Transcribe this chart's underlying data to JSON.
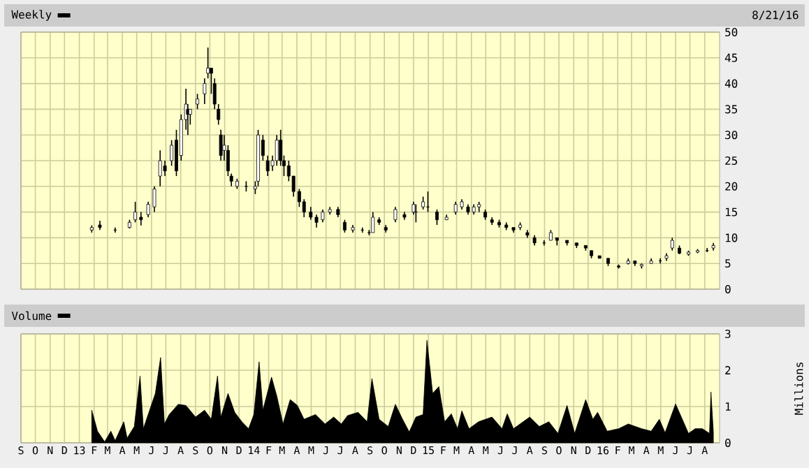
{
  "chart_data": [
    {
      "type": "candlestick",
      "annotations": [
        "8/21/16"
      ],
      "legend": "top left",
      "grid": true,
      "tick_labels": "y",
      "xlim": [
        "2012-09-01",
        "2016-09-01"
      ],
      "ylim": [
        0,
        50
      ],
      "yticks": [
        0,
        5,
        10,
        15,
        20,
        25,
        30,
        35,
        40,
        45,
        50
      ],
      "xticks": [
        {
          "value": "2012-09-01",
          "label": null
        },
        {
          "value": "2012-10-01",
          "label": null
        },
        {
          "value": "2012-11-01",
          "label": null
        },
        {
          "value": "2012-12-01",
          "label": null
        },
        {
          "value": "2013-01-01",
          "label": null
        },
        {
          "value": "2013-02-01",
          "label": null
        },
        {
          "value": "2013-03-01",
          "label": null
        },
        {
          "value": "2013-04-01",
          "label": null
        },
        {
          "value": "2013-05-01",
          "label": null
        },
        {
          "value": "2013-06-01",
          "label": null
        },
        {
          "value": "2013-07-01",
          "label": null
        },
        {
          "value": "2013-08-01",
          "label": null
        },
        {
          "value": "2013-09-01",
          "label": null
        },
        {
          "value": "2013-10-01",
          "label": null
        },
        {
          "value": "2013-11-01",
          "label": null
        },
        {
          "value": "2013-12-01",
          "label": null
        },
        {
          "value": "2014-01-01",
          "label": null
        },
        {
          "value": "2014-02-01",
          "label": null
        },
        {
          "value": "2014-03-01",
          "label": null
        },
        {
          "value": "2014-04-01",
          "label": null
        },
        {
          "value": "2014-05-01",
          "label": null
        },
        {
          "value": "2014-06-01",
          "label": null
        },
        {
          "value": "2014-07-01",
          "label": null
        },
        {
          "value": "2014-08-01",
          "label": null
        },
        {
          "value": "2014-09-01",
          "label": null
        },
        {
          "value": "2014-10-01",
          "label": null
        },
        {
          "value": "2014-11-01",
          "label": null
        },
        {
          "value": "2014-12-01",
          "label": null
        },
        {
          "value": "2015-01-01",
          "label": null
        },
        {
          "value": "2015-02-01",
          "label": null
        },
        {
          "value": "2015-03-01",
          "label": null
        },
        {
          "value": "2015-04-01",
          "label": null
        },
        {
          "value": "2015-05-01",
          "label": null
        },
        {
          "value": "2015-06-01",
          "label": null
        },
        {
          "value": "2015-07-01",
          "label": null
        },
        {
          "value": "2015-08-01",
          "label": null
        },
        {
          "value": "2015-09-01",
          "label": null
        },
        {
          "value": "2015-10-01",
          "label": null
        },
        {
          "value": "2015-11-01",
          "label": null
        },
        {
          "value": "2015-12-01",
          "label": null
        },
        {
          "value": "2016-01-01",
          "label": null
        },
        {
          "value": "2016-02-01",
          "label": null
        },
        {
          "value": "2016-03-01",
          "label": null
        },
        {
          "value": "2016-04-01",
          "label": null
        },
        {
          "value": "2016-05-01",
          "label": null
        },
        {
          "value": "2016-06-01",
          "label": null
        },
        {
          "value": "2016-07-01",
          "label": null
        },
        {
          "value": "2016-08-01",
          "label": null
        }
      ],
      "series": [
        {
          "name": "Weekly",
          "color": "#000000",
          "x": [
            "2013-01-27",
            "2013-02-13",
            "2013-03-17",
            "2013-04-16",
            "2013-04-28",
            "2013-05-10",
            "2013-05-25",
            "2013-06-07",
            "2013-06-19",
            "2013-06-29",
            "2013-07-13",
            "2013-07-23",
            "2013-08-02",
            "2013-08-12",
            "2013-08-16",
            "2013-08-21",
            "2013-09-05",
            "2013-09-20",
            "2013-09-27",
            "2013-10-04",
            "2013-10-11",
            "2013-10-19",
            "2013-10-24",
            "2013-10-31",
            "2013-11-08",
            "2013-11-15",
            "2013-11-27",
            "2013-12-16",
            "2014-01-04",
            "2014-01-10",
            "2014-01-20",
            "2014-01-30",
            "2014-02-09",
            "2014-02-18",
            "2014-02-26",
            "2014-03-05",
            "2014-03-15",
            "2014-03-25",
            "2014-04-06",
            "2014-04-16",
            "2014-04-30",
            "2014-05-12",
            "2014-05-25",
            "2014-06-09",
            "2014-06-26",
            "2014-07-10",
            "2014-07-27",
            "2014-08-16",
            "2014-08-30",
            "2014-09-07",
            "2014-09-20",
            "2014-10-04",
            "2014-10-24",
            "2014-11-12",
            "2014-12-01",
            "2014-12-06",
            "2014-12-21",
            "2014-12-31",
            "2015-01-19",
            "2015-02-08",
            "2015-02-27",
            "2015-03-12",
            "2015-03-25",
            "2015-04-06",
            "2015-04-17",
            "2015-04-30",
            "2015-05-14",
            "2015-05-29",
            "2015-06-13",
            "2015-06-28",
            "2015-07-12",
            "2015-07-27",
            "2015-08-11",
            "2015-08-31",
            "2015-09-14",
            "2015-09-27",
            "2015-10-18",
            "2015-11-07",
            "2015-11-26",
            "2015-12-08",
            "2015-12-25",
            "2016-01-12",
            "2016-02-03",
            "2016-02-23",
            "2016-03-08",
            "2016-03-22",
            "2016-04-11",
            "2016-04-30",
            "2016-05-13",
            "2016-05-25",
            "2016-06-09",
            "2016-06-28",
            "2016-07-17",
            "2016-08-06",
            "2016-08-19"
          ],
          "ohlc": [
            [
              11.5,
              12.4,
              11,
              12
            ],
            [
              12.5,
              13.3,
              11.5,
              12
            ],
            [
              11.5,
              12,
              11,
              11.5
            ],
            [
              12,
              13.5,
              11.8,
              13
            ],
            [
              13.5,
              17,
              13,
              15
            ],
            [
              14,
              15,
              12.4,
              13.5
            ],
            [
              14.5,
              17,
              14,
              16.5
            ],
            [
              16,
              20,
              15,
              19.5
            ],
            [
              22,
              27,
              20,
              25
            ],
            [
              24,
              25,
              22,
              23
            ],
            [
              25,
              29,
              24,
              28
            ],
            [
              29,
              31,
              22,
              23
            ],
            [
              26,
              34,
              25,
              33
            ],
            [
              33,
              39,
              31,
              36
            ],
            [
              35,
              36,
              30,
              34
            ],
            [
              34,
              35,
              32,
              35
            ],
            [
              36,
              38,
              35,
              37
            ],
            [
              38,
              41,
              36,
              40
            ],
            [
              42,
              47,
              41,
              43
            ],
            [
              43,
              43,
              38,
              42
            ],
            [
              40,
              41,
              35,
              36
            ],
            [
              35,
              36,
              32,
              33
            ],
            [
              30,
              31,
              25,
              26
            ],
            [
              27,
              30,
              25,
              28
            ],
            [
              27,
              28,
              22,
              23
            ],
            [
              22,
              22.5,
              20,
              21
            ],
            [
              20,
              21.5,
              19.5,
              21
            ],
            [
              20,
              21,
              19,
              20
            ],
            [
              19.5,
              21,
              18.5,
              20
            ],
            [
              21,
              31,
              20,
              30
            ],
            [
              29,
              30,
              25,
              26
            ],
            [
              25,
              26,
              22,
              23
            ],
            [
              24,
              26,
              23,
              25
            ],
            [
              25,
              30,
              24,
              29
            ],
            [
              29,
              31,
              24,
              25
            ],
            [
              25,
              26,
              22,
              24
            ],
            [
              24,
              25,
              21,
              22
            ],
            [
              22,
              22,
              18,
              19
            ],
            [
              19,
              19.5,
              16,
              17
            ],
            [
              17,
              17.5,
              14,
              15
            ],
            [
              15,
              16,
              13.5,
              14
            ],
            [
              14,
              14.5,
              12,
              13
            ],
            [
              13.5,
              15.5,
              13,
              15
            ],
            [
              15,
              16,
              14.5,
              15.5
            ],
            [
              15.5,
              16,
              14,
              14.5
            ],
            [
              13,
              13.5,
              11,
              11.5
            ],
            [
              11.5,
              12.5,
              11,
              12
            ],
            [
              11.5,
              12,
              11,
              11.5
            ],
            [
              11,
              11.5,
              10.5,
              11
            ],
            [
              11,
              15,
              11,
              14
            ],
            [
              13.5,
              14,
              12.5,
              13
            ],
            [
              12,
              12.5,
              11,
              11.5
            ],
            [
              13.5,
              16,
              13,
              15.5
            ],
            [
              14.5,
              15,
              13.5,
              14
            ],
            [
              15,
              17,
              14.5,
              16.5
            ],
            [
              15,
              16.5,
              13,
              15
            ],
            [
              16,
              18,
              15.5,
              17
            ],
            [
              16,
              19,
              15,
              16
            ],
            [
              15,
              15.5,
              12.5,
              13.5
            ],
            [
              13.5,
              14.5,
              13.5,
              14
            ],
            [
              15,
              17,
              14.5,
              16.5
            ],
            [
              16,
              17.5,
              15.5,
              17
            ],
            [
              16,
              16.5,
              14.5,
              15
            ],
            [
              15,
              16.5,
              14.5,
              16
            ],
            [
              16,
              17,
              15,
              16.5
            ],
            [
              15,
              15.5,
              13.5,
              14
            ],
            [
              13.5,
              14,
              12.5,
              13
            ],
            [
              13,
              13.5,
              12,
              12.5
            ],
            [
              12.5,
              13,
              11.5,
              12
            ],
            [
              12,
              12,
              11,
              11.5
            ],
            [
              12,
              13,
              11.5,
              12.5
            ],
            [
              11,
              11.5,
              10,
              10.5
            ],
            [
              10,
              10.5,
              8.5,
              9
            ],
            [
              9,
              9.5,
              8.5,
              9
            ],
            [
              9.5,
              11.5,
              9.5,
              11
            ],
            [
              10,
              10,
              8.5,
              9.5
            ],
            [
              9.5,
              9.5,
              8.5,
              9
            ],
            [
              9,
              9,
              8,
              8.5
            ],
            [
              8.5,
              8.5,
              7.5,
              8
            ],
            [
              7.5,
              7.5,
              6,
              6.5
            ],
            [
              6.5,
              6.5,
              6,
              6
            ],
            [
              6,
              6,
              4.5,
              5
            ],
            [
              4.5,
              4.8,
              4,
              4.3
            ],
            [
              5,
              6,
              4.8,
              5.5
            ],
            [
              5.5,
              5.5,
              4.5,
              5
            ],
            [
              4.5,
              5,
              4,
              4.8
            ],
            [
              5,
              6,
              5,
              5.5
            ],
            [
              5.5,
              6,
              5,
              5.5
            ],
            [
              6,
              7,
              5.5,
              6.5
            ],
            [
              8,
              10,
              7.5,
              9.5
            ],
            [
              8,
              8.5,
              6.8,
              7
            ],
            [
              6.8,
              7.5,
              6.5,
              7.2
            ],
            [
              7.2,
              7.8,
              7,
              7.5
            ],
            [
              7.5,
              8,
              7.2,
              7.5
            ],
            [
              8,
              9,
              7.5,
              8.5
            ]
          ]
        }
      ]
    },
    {
      "type": "area",
      "ylabel": "Millions",
      "legend": "top left",
      "grid": true,
      "xlim": [
        "2012-09-01",
        "2016-09-01"
      ],
      "ylim": [
        0,
        3
      ],
      "yticks": [
        0,
        1,
        2,
        3
      ],
      "xticks": [
        {
          "value": "2012-09-01",
          "label": "S"
        },
        {
          "value": "2012-10-01",
          "label": "O"
        },
        {
          "value": "2012-11-01",
          "label": "N"
        },
        {
          "value": "2012-12-01",
          "label": "D"
        },
        {
          "value": "2013-01-01",
          "label": "13"
        },
        {
          "value": "2013-02-01",
          "label": "F"
        },
        {
          "value": "2013-03-01",
          "label": "M"
        },
        {
          "value": "2013-04-01",
          "label": "A"
        },
        {
          "value": "2013-05-01",
          "label": "M"
        },
        {
          "value": "2013-06-01",
          "label": "J"
        },
        {
          "value": "2013-07-01",
          "label": "J"
        },
        {
          "value": "2013-08-01",
          "label": "A"
        },
        {
          "value": "2013-09-01",
          "label": "S"
        },
        {
          "value": "2013-10-01",
          "label": "O"
        },
        {
          "value": "2013-11-01",
          "label": "N"
        },
        {
          "value": "2013-12-01",
          "label": "D"
        },
        {
          "value": "2014-01-01",
          "label": "14"
        },
        {
          "value": "2014-02-01",
          "label": "F"
        },
        {
          "value": "2014-03-01",
          "label": "M"
        },
        {
          "value": "2014-04-01",
          "label": "A"
        },
        {
          "value": "2014-05-01",
          "label": "M"
        },
        {
          "value": "2014-06-01",
          "label": "J"
        },
        {
          "value": "2014-07-01",
          "label": "J"
        },
        {
          "value": "2014-08-01",
          "label": "A"
        },
        {
          "value": "2014-09-01",
          "label": "S"
        },
        {
          "value": "2014-10-01",
          "label": "O"
        },
        {
          "value": "2014-11-01",
          "label": "N"
        },
        {
          "value": "2014-12-01",
          "label": "D"
        },
        {
          "value": "2015-01-01",
          "label": "15"
        },
        {
          "value": "2015-02-01",
          "label": "F"
        },
        {
          "value": "2015-03-01",
          "label": "M"
        },
        {
          "value": "2015-04-01",
          "label": "A"
        },
        {
          "value": "2015-05-01",
          "label": "M"
        },
        {
          "value": "2015-06-01",
          "label": "J"
        },
        {
          "value": "2015-07-01",
          "label": "J"
        },
        {
          "value": "2015-08-01",
          "label": "A"
        },
        {
          "value": "2015-09-01",
          "label": "S"
        },
        {
          "value": "2015-10-01",
          "label": "O"
        },
        {
          "value": "2015-11-01",
          "label": "N"
        },
        {
          "value": "2015-12-01",
          "label": "D"
        },
        {
          "value": "2016-01-01",
          "label": "16"
        },
        {
          "value": "2016-02-01",
          "label": "F"
        },
        {
          "value": "2016-03-01",
          "label": "M"
        },
        {
          "value": "2016-04-01",
          "label": "A"
        },
        {
          "value": "2016-05-01",
          "label": "M"
        },
        {
          "value": "2016-06-01",
          "label": "J"
        },
        {
          "value": "2016-07-01",
          "label": "J"
        },
        {
          "value": "2016-08-01",
          "label": "A"
        }
      ],
      "series": [
        {
          "name": "Volume",
          "color": "#000000",
          "x": [
            "2013-01-27",
            "2013-02-08",
            "2013-02-23",
            "2013-03-08",
            "2013-03-17",
            "2013-04-04",
            "2013-04-11",
            "2013-04-26",
            "2013-05-08",
            "2013-05-15",
            "2013-05-25",
            "2013-06-09",
            "2013-06-20",
            "2013-06-28",
            "2013-07-08",
            "2013-07-27",
            "2013-08-12",
            "2013-09-01",
            "2013-09-20",
            "2013-10-04",
            "2013-10-17",
            "2013-10-24",
            "2013-11-08",
            "2013-11-22",
            "2013-12-07",
            "2013-12-21",
            "2014-01-01",
            "2014-01-12",
            "2014-01-20",
            "2014-02-07",
            "2014-02-18",
            "2014-03-03",
            "2014-03-18",
            "2014-04-02",
            "2014-04-16",
            "2014-05-10",
            "2014-05-30",
            "2014-06-17",
            "2014-07-03",
            "2014-07-16",
            "2014-08-07",
            "2014-08-26",
            "2014-09-05",
            "2014-09-20",
            "2014-10-09",
            "2014-10-24",
            "2014-11-08",
            "2014-11-22",
            "2014-12-06",
            "2014-12-21",
            "2014-12-29",
            "2015-01-10",
            "2015-01-23",
            "2015-02-04",
            "2015-02-18",
            "2015-03-03",
            "2015-03-12",
            "2015-03-27",
            "2015-04-16",
            "2015-05-14",
            "2015-06-04",
            "2015-06-15",
            "2015-06-28",
            "2015-08-01",
            "2015-08-21",
            "2015-09-10",
            "2015-09-29",
            "2015-10-18",
            "2015-11-03",
            "2015-11-26",
            "2015-12-11",
            "2015-12-21",
            "2016-01-10",
            "2016-02-03",
            "2016-02-23",
            "2016-03-22",
            "2016-04-11",
            "2016-04-28",
            "2016-05-10",
            "2016-06-01",
            "2016-06-13",
            "2016-06-28",
            "2016-07-12",
            "2016-07-27",
            "2016-08-11",
            "2016-08-14",
            "2016-08-19"
          ],
          "values": [
            0.9,
            0.32,
            0.03,
            0.32,
            0.06,
            0.58,
            0.13,
            0.45,
            1.84,
            0.39,
            0.78,
            1.36,
            2.35,
            0.52,
            0.78,
            1.06,
            1.03,
            0.71,
            0.9,
            0.65,
            1.84,
            0.71,
            1.36,
            0.84,
            0.58,
            0.39,
            0.78,
            2.23,
            0.9,
            1.81,
            1.29,
            0.52,
            1.19,
            1.03,
            0.65,
            0.78,
            0.52,
            0.71,
            0.52,
            0.75,
            0.84,
            0.58,
            1.77,
            0.65,
            0.45,
            1.06,
            0.65,
            0.3,
            0.71,
            0.78,
            2.82,
            1.36,
            1.55,
            0.58,
            0.8,
            0.39,
            0.88,
            0.39,
            0.58,
            0.71,
            0.39,
            0.8,
            0.39,
            0.71,
            0.45,
            0.58,
            0.26,
            1.03,
            0.26,
            1.19,
            0.65,
            0.84,
            0.32,
            0.39,
            0.52,
            0.39,
            0.32,
            0.65,
            0.28,
            1.07,
            0.71,
            0.26,
            0.39,
            0.39,
            0.26,
            1.4,
            0.3
          ]
        }
      ]
    }
  ]
}
